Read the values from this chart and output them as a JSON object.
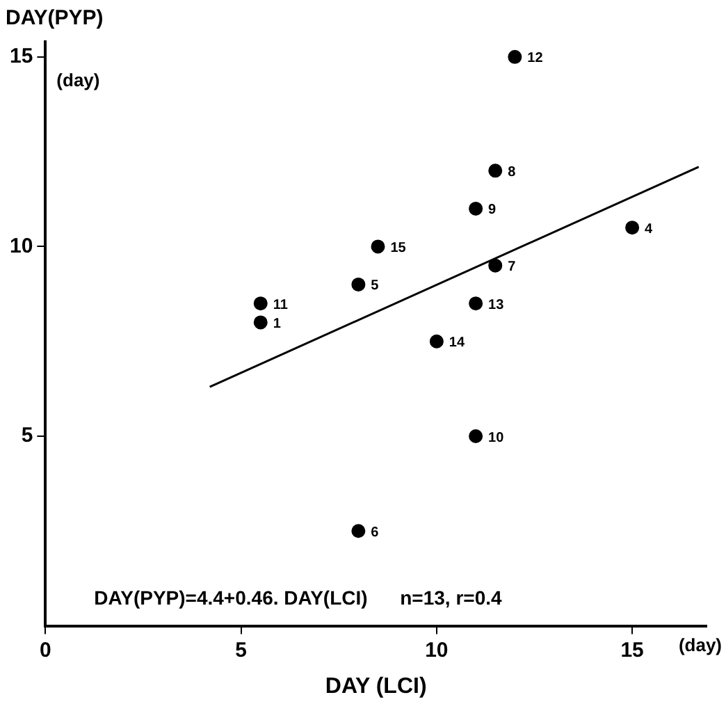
{
  "chart_data": {
    "type": "scatter",
    "xlabel": "DAY (LCI)",
    "ylabel": "DAY(PYP)",
    "xlim": [
      0,
      16.9
    ],
    "ylim": [
      0,
      15.4
    ],
    "xticks": [
      0,
      5,
      10,
      15
    ],
    "yticks": [
      5,
      10,
      15
    ],
    "grid": false,
    "legend": false,
    "marker": "circle",
    "series": [
      {
        "color": "#000000",
        "x": [
          5.5,
          15,
          8,
          8,
          11.5,
          11.5,
          11,
          11,
          5.5,
          12,
          11,
          10,
          8.5
        ],
        "values": [
          8,
          10.5,
          9,
          2.5,
          9.5,
          12,
          11,
          5,
          8.5,
          15,
          8.5,
          7.5,
          10
        ]
      },
      {
        "type": "line",
        "color": "#000000",
        "x": [
          4.2,
          16.7
        ],
        "values": [
          6.3,
          12.1
        ],
        "line_style": "solid",
        "marker": "none"
      }
    ],
    "annotations": [
      {
        "text": "1",
        "x": 5.5,
        "y": 8
      },
      {
        "text": "4",
        "x": 15,
        "y": 10.5
      },
      {
        "text": "5",
        "x": 8,
        "y": 9
      },
      {
        "text": "6",
        "x": 8,
        "y": 2.5
      },
      {
        "text": "7",
        "x": 11.5,
        "y": 9.5
      },
      {
        "text": "8",
        "x": 11.5,
        "y": 12
      },
      {
        "text": "9",
        "x": 11,
        "y": 11
      },
      {
        "text": "10",
        "x": 11,
        "y": 5
      },
      {
        "text": "11",
        "x": 5.5,
        "y": 8.5
      },
      {
        "text": "12",
        "x": 12,
        "y": 15
      },
      {
        "text": "13",
        "x": 11,
        "y": 8.5
      },
      {
        "text": "14",
        "x": 10,
        "y": 7.5
      },
      {
        "text": "15",
        "x": 8.5,
        "y": 10
      },
      "(day)",
      "(day)",
      "DAY(PYP)=4.4+0.46. DAY(LCI)      n=13, r=0.4"
    ]
  }
}
